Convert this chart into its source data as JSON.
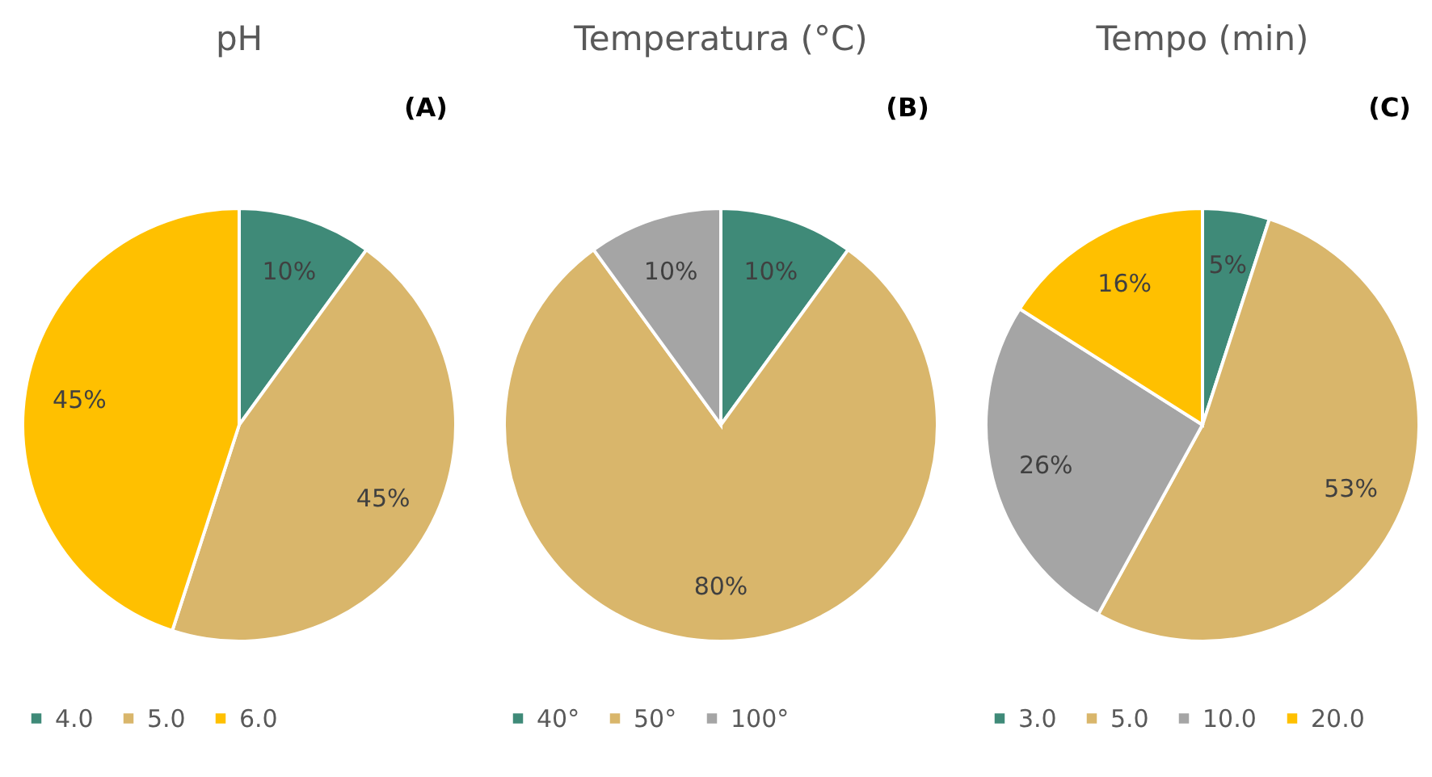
{
  "chart_data": [
    {
      "type": "pie",
      "title": "pH",
      "annotations": [
        "(A)"
      ],
      "categories": [
        "4.0",
        "5.0",
        "6.0"
      ],
      "values": [
        10,
        45,
        45
      ],
      "colors": [
        "#3f8a78",
        "#d9b66b",
        "#ffc000"
      ],
      "value_labels": [
        "10%",
        "45%",
        "45%"
      ],
      "legend": "bottom"
    },
    {
      "type": "pie",
      "title": "Temperatura (°C)",
      "annotations": [
        "(B)"
      ],
      "categories": [
        "40°",
        "50°",
        "100°"
      ],
      "values": [
        10,
        80,
        10
      ],
      "colors": [
        "#3f8a78",
        "#d9b66b",
        "#a5a5a5"
      ],
      "value_labels": [
        "10%",
        "80%",
        "10%"
      ],
      "legend": "bottom"
    },
    {
      "type": "pie",
      "title": "Tempo (min)",
      "annotations": [
        "(C)"
      ],
      "categories": [
        "3.0",
        "5.0",
        "10.0",
        "20.0"
      ],
      "values": [
        5,
        53,
        26,
        16
      ],
      "colors": [
        "#3f8a78",
        "#d9b66b",
        "#a5a5a5",
        "#ffc000"
      ],
      "value_labels": [
        "5%",
        "53%",
        "26%",
        "16%"
      ],
      "legend": "bottom"
    }
  ]
}
